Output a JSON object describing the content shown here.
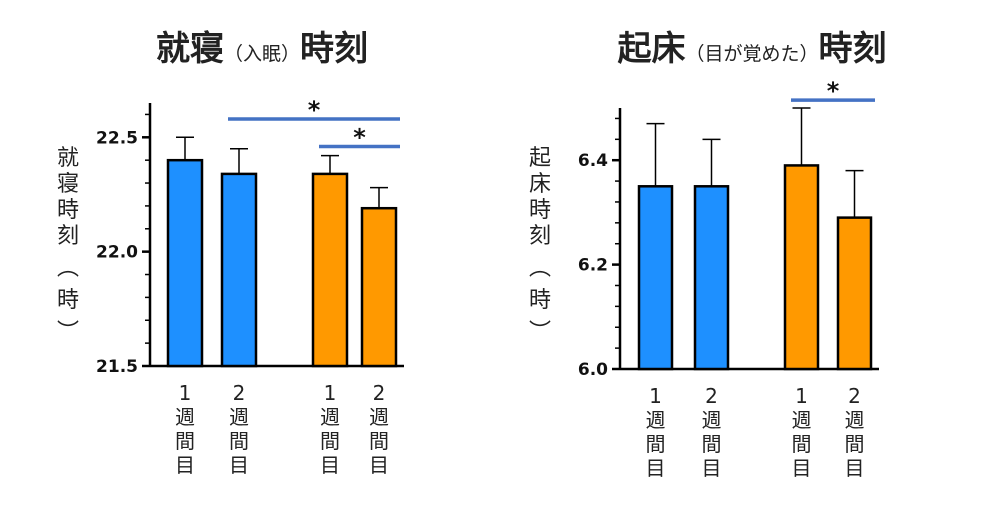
{
  "chart_data": [
    {
      "type": "bar",
      "title": "就寝",
      "title_note": "（入眠）",
      "title_suffix": "時刻",
      "ylabel": "就寝時刻（時）",
      "ylim": [
        21.5,
        22.65
      ],
      "yticks": [
        "21.5",
        "22.0",
        "22.5"
      ],
      "categories": [
        "1週間目",
        "2週間目",
        "1週間目",
        "2週間目"
      ],
      "values": [
        22.4,
        22.34,
        22.34,
        22.19
      ],
      "errors": [
        0.1,
        0.11,
        0.08,
        0.09
      ],
      "colors": [
        "#1E90FF",
        "#1E90FF",
        "#FF9900",
        "#FF9900"
      ],
      "significance": [
        {
          "from": 1,
          "to": 3,
          "label": "*",
          "y": 22.58
        },
        {
          "from": 2,
          "to": 3,
          "label": "*",
          "y": 22.46
        }
      ]
    },
    {
      "type": "bar",
      "title": "起床",
      "title_note": "（目が覚めた）",
      "title_suffix": "時刻",
      "ylabel": "起床時刻（時）",
      "ylim": [
        6.0,
        6.5
      ],
      "yticks": [
        "6.0",
        "6.2",
        "6.4"
      ],
      "categories": [
        "1週間目",
        "2週間目",
        "1週間目",
        "2週間目"
      ],
      "values": [
        6.35,
        6.35,
        6.39,
        6.29
      ],
      "errors": [
        0.12,
        0.09,
        0.11,
        0.09
      ],
      "colors": [
        "#1E90FF",
        "#1E90FF",
        "#FF9900",
        "#FF9900"
      ],
      "significance": [
        {
          "from": 2,
          "to": 3,
          "label": "*",
          "y": 6.515
        }
      ]
    }
  ],
  "x_labels": [
    {
      "num": "1",
      "chars": [
        "週",
        "間",
        "目"
      ]
    },
    {
      "num": "2",
      "chars": [
        "週",
        "間",
        "目"
      ]
    },
    {
      "num": "1",
      "chars": [
        "週",
        "間",
        "目"
      ]
    },
    {
      "num": "2",
      "chars": [
        "週",
        "間",
        "目"
      ]
    }
  ],
  "colors": {
    "blue": "#1E90FF",
    "orange": "#FF9900",
    "sig_line": "#4472C4"
  }
}
